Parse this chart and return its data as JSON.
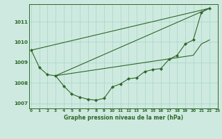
{
  "title": "Graphe pression niveau de la mer (hPa)",
  "background_color": "#ceeae0",
  "grid_color": "#a8d4c4",
  "line_color": "#2d6628",
  "main_curve": {
    "x": [
      0,
      1,
      2,
      3,
      4,
      5,
      6,
      7,
      8,
      9,
      10,
      11,
      12,
      13,
      14,
      15,
      16,
      17,
      18,
      19,
      20,
      21,
      22
    ],
    "y": [
      1009.6,
      1008.75,
      1008.4,
      1008.35,
      1007.85,
      1007.45,
      1007.3,
      1007.2,
      1007.15,
      1007.25,
      1007.8,
      1007.95,
      1008.2,
      1008.25,
      1008.55,
      1008.65,
      1008.7,
      1009.15,
      1009.35,
      1009.9,
      1010.1,
      1011.45,
      1011.65
    ]
  },
  "straight_line1": {
    "x": [
      0,
      22
    ],
    "y": [
      1009.6,
      1011.65
    ]
  },
  "straight_line2": {
    "x": [
      3,
      22
    ],
    "y": [
      1008.35,
      1011.65
    ]
  },
  "straight_line3": {
    "x": [
      3,
      20,
      21,
      22
    ],
    "y": [
      1008.35,
      1009.35,
      1009.9,
      1010.1
    ]
  },
  "xlim": [
    -0.3,
    23.0
  ],
  "ylim": [
    1006.75,
    1011.85
  ],
  "yticks": [
    1007,
    1008,
    1009,
    1010,
    1011
  ],
  "xticks": [
    0,
    1,
    2,
    3,
    4,
    5,
    6,
    7,
    8,
    9,
    10,
    11,
    12,
    13,
    14,
    15,
    16,
    17,
    18,
    19,
    20,
    21,
    22,
    23
  ],
  "tick_fontsize": 4.2,
  "label_fontsize": 5.5
}
